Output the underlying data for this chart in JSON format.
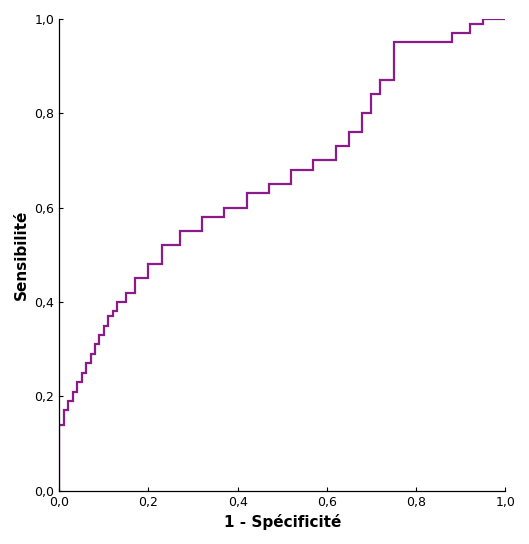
{
  "line_color": "#8B1A8B",
  "line_width": 1.6,
  "xlabel": "1 - Spécificité",
  "ylabel": "Sensibilité",
  "xlabel_fontsize": 11,
  "ylabel_fontsize": 11,
  "xlabel_fontweight": "bold",
  "ylabel_fontweight": "bold",
  "tick_label_fontsize": 9,
  "xlim": [
    0.0,
    1.0
  ],
  "ylim": [
    0.0,
    1.0
  ],
  "xticks": [
    0.0,
    0.2,
    0.4,
    0.6,
    0.8,
    1.0
  ],
  "yticks": [
    0.0,
    0.2,
    0.4,
    0.6,
    0.8,
    1.0
  ],
  "background_color": "#ffffff",
  "roc_fpr": [
    0.0,
    0.0,
    0.01,
    0.01,
    0.02,
    0.02,
    0.03,
    0.03,
    0.04,
    0.04,
    0.05,
    0.05,
    0.06,
    0.06,
    0.07,
    0.07,
    0.08,
    0.08,
    0.09,
    0.09,
    0.1,
    0.1,
    0.11,
    0.11,
    0.12,
    0.12,
    0.13,
    0.13,
    0.15,
    0.15,
    0.17,
    0.17,
    0.2,
    0.2,
    0.23,
    0.23,
    0.27,
    0.27,
    0.32,
    0.32,
    0.37,
    0.37,
    0.42,
    0.42,
    0.47,
    0.47,
    0.52,
    0.52,
    0.57,
    0.57,
    0.62,
    0.62,
    0.65,
    0.65,
    0.68,
    0.68,
    0.7,
    0.7,
    0.72,
    0.72,
    0.75,
    0.75,
    0.88,
    0.88,
    0.92,
    0.92,
    0.95,
    0.95,
    1.0
  ],
  "roc_tpr": [
    0.0,
    0.14,
    0.14,
    0.17,
    0.17,
    0.19,
    0.19,
    0.21,
    0.21,
    0.23,
    0.23,
    0.25,
    0.25,
    0.27,
    0.27,
    0.29,
    0.29,
    0.31,
    0.31,
    0.33,
    0.33,
    0.35,
    0.35,
    0.37,
    0.37,
    0.38,
    0.38,
    0.4,
    0.4,
    0.42,
    0.42,
    0.45,
    0.45,
    0.48,
    0.48,
    0.52,
    0.52,
    0.55,
    0.55,
    0.58,
    0.58,
    0.6,
    0.6,
    0.63,
    0.63,
    0.65,
    0.65,
    0.68,
    0.68,
    0.7,
    0.7,
    0.73,
    0.73,
    0.76,
    0.76,
    0.8,
    0.8,
    0.84,
    0.84,
    0.87,
    0.87,
    0.95,
    0.95,
    0.97,
    0.97,
    0.99,
    0.99,
    1.0,
    1.0
  ]
}
